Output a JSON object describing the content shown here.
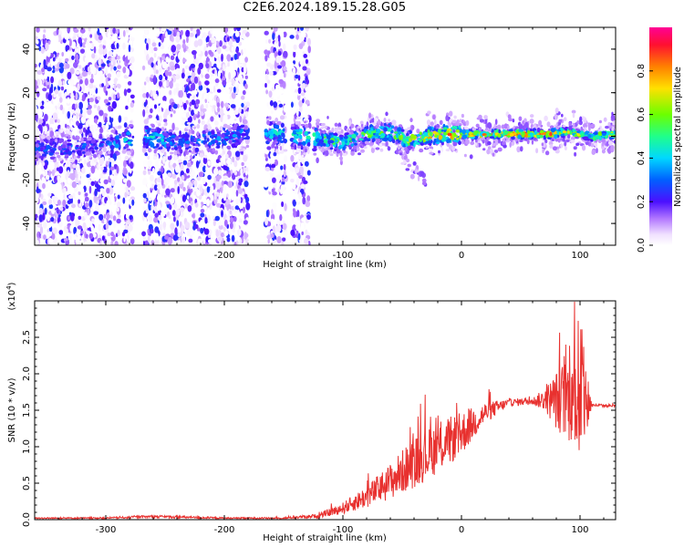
{
  "title": "C2E6.2024.189.15.28.G05",
  "colors": {
    "snr_line": "#e8312f",
    "axes": "#000000",
    "colormap": [
      "#ffffff",
      "#f3e6ff",
      "#c9a0ff",
      "#9a4dff",
      "#7d1fff",
      "#3a14ff",
      "#0050ff",
      "#00c8ff",
      "#1aff9a",
      "#7cff00",
      "#ffe500",
      "#ff8a00",
      "#ff2030",
      "#ff0090"
    ]
  },
  "chart_data": [
    {
      "type": "heatmap",
      "xlabel": "Height of straight line (km)",
      "ylabel": "Frequency (Hz)",
      "xlim": [
        -360,
        130
      ],
      "ylim": [
        -50,
        50
      ],
      "xticks": [
        -300,
        -200,
        -100,
        0,
        100
      ],
      "xtick_labels": [
        "-300",
        "-200",
        "-100",
        "0",
        "100"
      ],
      "yticks": [
        -40,
        -20,
        0,
        20,
        40
      ],
      "ytick_labels": [
        "-40",
        "-20",
        "0",
        "20",
        "40"
      ],
      "colorbar": {
        "label": "Normalized spectral amplitude",
        "range": [
          0,
          1
        ],
        "ticks": [
          0,
          0.2,
          0.4,
          0.6,
          0.8
        ],
        "tick_labels": [
          "0.0",
          "0.2",
          "0.4",
          "0.6",
          "0.8"
        ]
      },
      "ridge": {
        "description_points_x": [
          -350,
          -330,
          -300,
          -270,
          -240,
          -200,
          -170,
          -150,
          -120,
          -100,
          -80,
          -60,
          -45,
          -30,
          -10,
          10,
          40,
          70,
          90,
          110,
          130
        ],
        "description_points_freq": [
          -6,
          -5,
          -4,
          0,
          -3,
          -1,
          2,
          1,
          -1,
          -3,
          1,
          2,
          -2,
          0,
          1,
          1,
          1,
          1,
          2,
          0,
          1
        ],
        "description_points_amp": [
          0.3,
          0.3,
          0.3,
          0.5,
          0.35,
          0.35,
          0.45,
          0.45,
          0.55,
          0.55,
          0.6,
          0.6,
          0.65,
          0.75,
          0.85,
          0.85,
          0.9,
          0.9,
          0.7,
          0.75,
          0.7
        ]
      }
    },
    {
      "type": "line",
      "xlabel": "Height of straight line (km)",
      "ylabel": "SNR (10 * v/v)",
      "y_multiplier_label": "(x10",
      "y_multiplier_exp": "4",
      "xlim": [
        -360,
        130
      ],
      "ylim": [
        0,
        3.0
      ],
      "xticks": [
        -300,
        -200,
        -100,
        0,
        100
      ],
      "xtick_labels": [
        "-300",
        "-200",
        "-100",
        "0",
        "100"
      ],
      "yticks": [
        0,
        0.5,
        1.0,
        1.5,
        2.0,
        2.5
      ],
      "ytick_labels": [
        "0.0",
        "0.5",
        "1.0",
        "1.5",
        "2.0",
        "2.5"
      ],
      "series": [
        {
          "x": [
            -360,
            -300,
            -260,
            -200,
            -150,
            -120,
            -100,
            -80,
            -60,
            -40,
            -20,
            0,
            20,
            40,
            60,
            70,
            80,
            90,
            95,
            100,
            105,
            110,
            120,
            130
          ],
          "values": [
            0.02,
            0.02,
            0.04,
            0.02,
            0.02,
            0.05,
            0.15,
            0.3,
            0.5,
            0.75,
            0.95,
            1.15,
            1.45,
            1.6,
            1.62,
            1.63,
            1.6,
            1.6,
            1.65,
            1.6,
            1.58,
            1.57,
            1.56,
            1.56
          ],
          "noise_amp": [
            0.01,
            0.01,
            0.02,
            0.01,
            0.01,
            0.03,
            0.08,
            0.15,
            0.25,
            0.35,
            0.35,
            0.3,
            0.15,
            0.05,
            0.05,
            0.15,
            0.4,
            0.6,
            0.75,
            0.9,
            0.6,
            0.02,
            0.02,
            0.02
          ]
        }
      ]
    }
  ]
}
